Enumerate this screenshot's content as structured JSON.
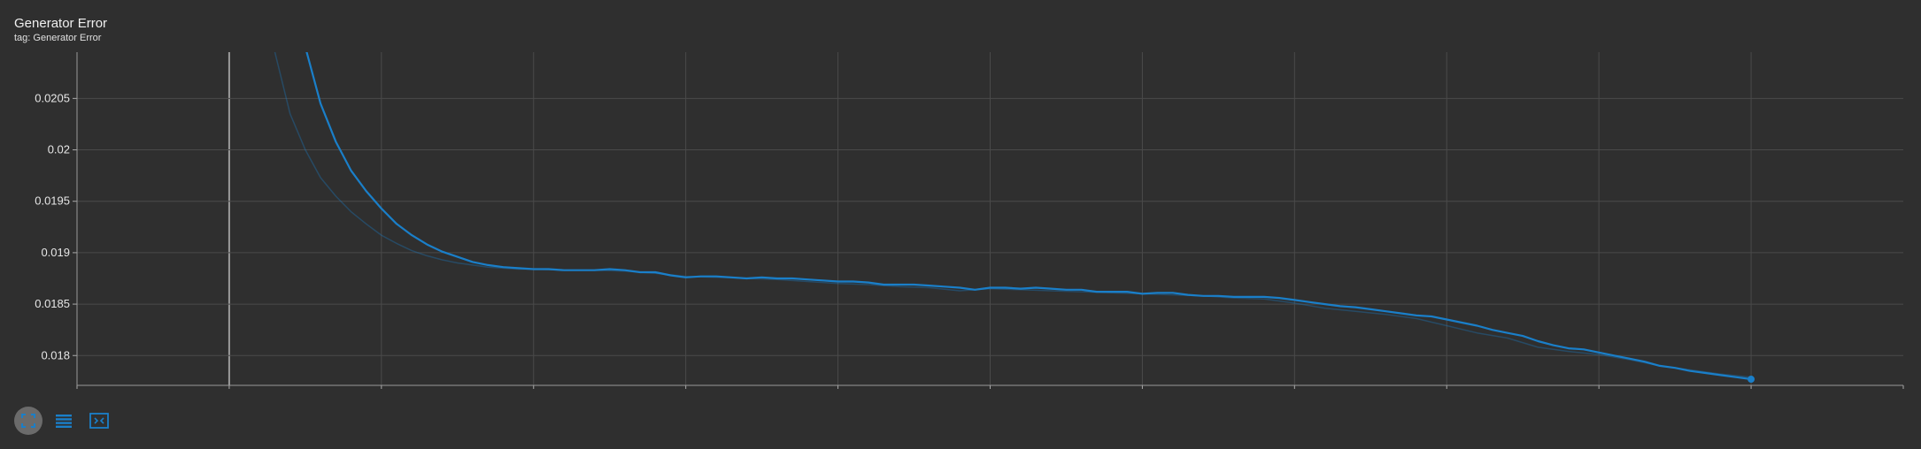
{
  "header": {
    "title": "Generator Error",
    "subtitle": "tag: Generator Error"
  },
  "toolbar": {
    "buttons": [
      {
        "icon": "expand-chart-icon",
        "active": true
      },
      {
        "icon": "toggle-y-log-icon",
        "active": false
      },
      {
        "icon": "fit-domain-icon",
        "active": false
      }
    ]
  },
  "colors": {
    "background": "#2f2f2f",
    "grid": "#4a4a4a",
    "series_smoothed": "#1a7fc9",
    "series_raw": "#1a7fc9"
  },
  "chart_data": {
    "type": "line",
    "title": "Generator Error",
    "xlabel": "",
    "ylabel": "",
    "xlim": [
      -10,
      110
    ],
    "ylim": [
      0.01771,
      0.02095
    ],
    "x_ticks": [
      0,
      10,
      20,
      30,
      40,
      50,
      60,
      70,
      80,
      90,
      100
    ],
    "y_ticks": [
      0.018,
      0.0185,
      0.019,
      0.0195,
      0.02,
      0.0205
    ],
    "y_tick_labels": [
      "0.018",
      "0.0185",
      "0.019",
      "0.0195",
      "0.02",
      "0.0205"
    ],
    "grid": true,
    "series": [
      {
        "style": "raw",
        "x": [
          3,
          4,
          5,
          6,
          7,
          8,
          9,
          10,
          11,
          12,
          13,
          14,
          15,
          16,
          17,
          18,
          19,
          20,
          22,
          24,
          26,
          28,
          30,
          32,
          34,
          36,
          38,
          40,
          42,
          44,
          46,
          48,
          50,
          52,
          54,
          56,
          58,
          60,
          62,
          64,
          66,
          68,
          70,
          72,
          74,
          76,
          78,
          80,
          82,
          84,
          86,
          88,
          90,
          92,
          94,
          96,
          98,
          100
        ],
        "values": [
          0.02095,
          0.02035,
          0.02,
          0.01973,
          0.01955,
          0.0194,
          0.01928,
          0.01917,
          0.01909,
          0.01902,
          0.01897,
          0.01893,
          0.0189,
          0.01888,
          0.01886,
          0.01885,
          0.01884,
          0.01884,
          0.01883,
          0.01883,
          0.01882,
          0.0188,
          0.01877,
          0.01876,
          0.01875,
          0.01874,
          0.01872,
          0.0187,
          0.01869,
          0.01867,
          0.01866,
          0.01863,
          0.01865,
          0.01864,
          0.01863,
          0.01862,
          0.01861,
          0.0186,
          0.01859,
          0.01858,
          0.01856,
          0.01855,
          0.01851,
          0.01846,
          0.01843,
          0.0184,
          0.01836,
          0.01829,
          0.01822,
          0.01817,
          0.01808,
          0.01804,
          0.01801,
          0.01796,
          0.0179,
          0.01786,
          0.01782,
          0.01779
        ]
      },
      {
        "style": "smoothed",
        "x": [
          5,
          6,
          7,
          8,
          9,
          10,
          11,
          12,
          13,
          14,
          15,
          16,
          17,
          18,
          19,
          20,
          21,
          22,
          23,
          24,
          25,
          26,
          27,
          28,
          29,
          30,
          31,
          32,
          33,
          34,
          35,
          36,
          37,
          38,
          39,
          40,
          41,
          42,
          43,
          44,
          45,
          46,
          47,
          48,
          49,
          50,
          51,
          52,
          53,
          54,
          55,
          56,
          57,
          58,
          59,
          60,
          61,
          62,
          63,
          64,
          65,
          66,
          67,
          68,
          69,
          70,
          71,
          72,
          73,
          74,
          75,
          76,
          77,
          78,
          79,
          80,
          81,
          82,
          83,
          84,
          85,
          86,
          87,
          88,
          89,
          90,
          91,
          92,
          93,
          94,
          95,
          96,
          97,
          98,
          99,
          100
        ],
        "values": [
          0.021,
          0.02045,
          0.02008,
          0.0198,
          0.0196,
          0.01943,
          0.01928,
          0.01917,
          0.01908,
          0.01901,
          0.01896,
          0.01891,
          0.01888,
          0.01886,
          0.01885,
          0.01884,
          0.01884,
          0.01883,
          0.01883,
          0.01883,
          0.01884,
          0.01883,
          0.01881,
          0.01881,
          0.01878,
          0.01876,
          0.01877,
          0.01877,
          0.01876,
          0.01875,
          0.01876,
          0.01875,
          0.01875,
          0.01874,
          0.01873,
          0.01872,
          0.01872,
          0.01871,
          0.01869,
          0.01869,
          0.01869,
          0.01868,
          0.01867,
          0.01866,
          0.01864,
          0.01866,
          0.01866,
          0.01865,
          0.01866,
          0.01865,
          0.01864,
          0.01864,
          0.01862,
          0.01862,
          0.01862,
          0.0186,
          0.01861,
          0.01861,
          0.01859,
          0.01858,
          0.01858,
          0.01857,
          0.01857,
          0.01857,
          0.01856,
          0.01854,
          0.01852,
          0.0185,
          0.01848,
          0.01847,
          0.01845,
          0.01843,
          0.01841,
          0.01839,
          0.01838,
          0.01835,
          0.01832,
          0.01829,
          0.01825,
          0.01822,
          0.01819,
          0.01814,
          0.0181,
          0.01807,
          0.01806,
          0.01803,
          0.018,
          0.01797,
          0.01794,
          0.0179,
          0.01788,
          0.01785,
          0.01783,
          0.01781,
          0.01779,
          0.01777
        ]
      }
    ]
  }
}
